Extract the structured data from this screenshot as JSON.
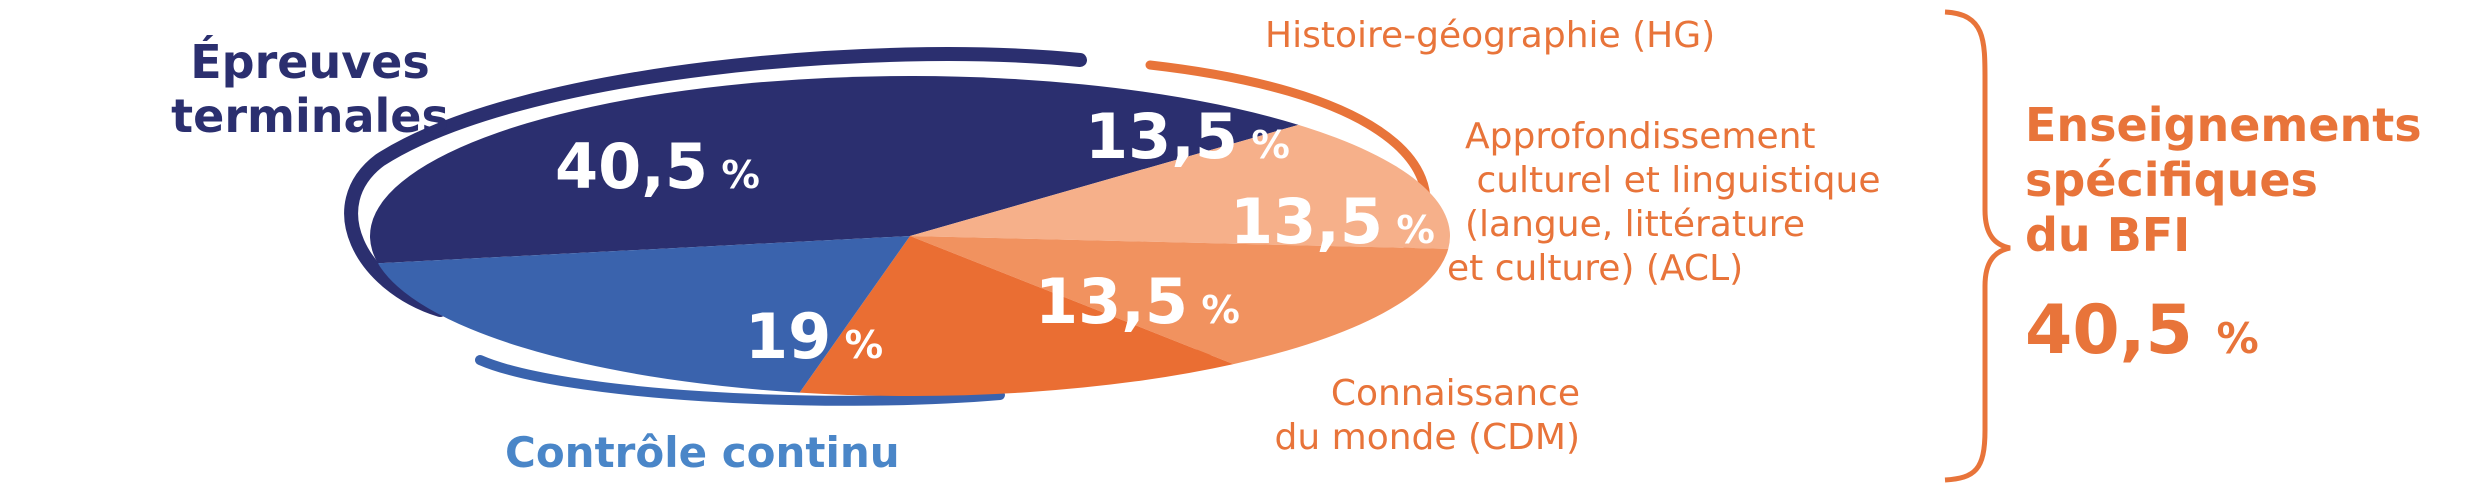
{
  "chart_data": {
    "type": "pie",
    "slices": [
      {
        "label": "Épreuves terminales",
        "value": 40.5,
        "display": "40,5",
        "color": "#2b2f6f"
      },
      {
        "label": "Histoire-géographie (HG)",
        "value": 13.5,
        "display": "13,5",
        "color": "#f6b08a"
      },
      {
        "label": "Approfondissement culturel et linguistique (langue, littérature et culture) (ACL)",
        "value": 13.5,
        "display": "13,5",
        "color": "#f1925f"
      },
      {
        "label": "Connaissance du monde (CDM)",
        "value": 13.5,
        "display": "13,5",
        "color": "#ea6e33"
      },
      {
        "label": "Contrôle continu",
        "value": 19,
        "display": "19",
        "color": "#3a63ad"
      }
    ],
    "unit": "%"
  },
  "labels": {
    "left_line1": "Épreuves",
    "left_line2": "terminales",
    "bottom": "Contrôle continu",
    "hg": "Histoire-géographie (HG)",
    "acl_line1": "Approfondissement",
    "acl_line2": " culturel et linguistique",
    "acl_line3": "(langue, littérature",
    "acl_line4": "et culture) (ACL)",
    "cdm_line1": "Connaissance",
    "cdm_line2": "du monde (CDM)",
    "group_line1": "Enseignements",
    "group_line2": "spécifiques",
    "group_line3": "du BFI",
    "group_value": "40,5",
    "unit": "%"
  },
  "colors": {
    "navy": "#2b2f6f",
    "blue": "#3a63ad",
    "light_blue_text": "#4a86c8",
    "orange": "#e8743a",
    "orange_light": "#f6b08a",
    "orange_mid": "#f1925f",
    "orange_dark": "#ea6e33"
  }
}
